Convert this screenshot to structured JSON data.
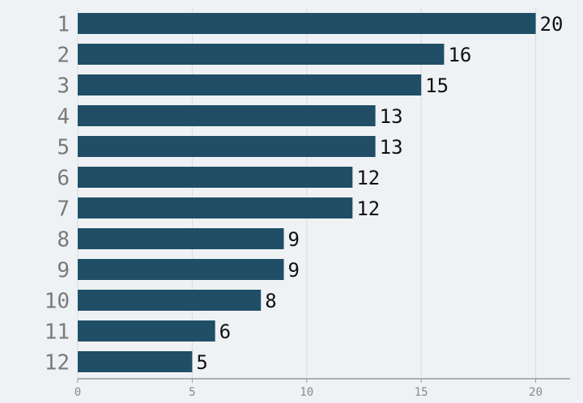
{
  "chart_data": {
    "type": "bar",
    "orientation": "horizontal",
    "categories": [
      "1",
      "2",
      "3",
      "4",
      "5",
      "6",
      "7",
      "8",
      "9",
      "10",
      "11",
      "12"
    ],
    "values": [
      20,
      16,
      15,
      13,
      13,
      12,
      12,
      9,
      9,
      8,
      6,
      5
    ],
    "color": "#1f4e66",
    "xlim": [
      0,
      21.5
    ],
    "xticks": [
      0,
      5,
      10,
      15,
      20
    ],
    "grid": true
  }
}
